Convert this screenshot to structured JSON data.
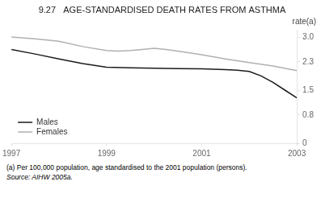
{
  "chart_data": {
    "type": "line",
    "title": "9.27   AGE-STANDARDISED DEATH RATES FROM ASTHMA",
    "ylabel": "rate(a)",
    "series": [
      {
        "name": "Males",
        "color": "#1a1a1a",
        "x": [
          1997,
          1997.5,
          1998,
          1998.5,
          1999,
          1999.5,
          2000,
          2000.5,
          2001,
          2001.25,
          2001.5,
          2001.75,
          2002,
          2002.25,
          2002.5,
          2002.75,
          2003
        ],
        "values": [
          2.65,
          2.52,
          2.38,
          2.25,
          2.15,
          2.13,
          2.12,
          2.11,
          2.1,
          2.09,
          2.08,
          2.06,
          2.03,
          1.9,
          1.72,
          1.5,
          1.28
        ]
      },
      {
        "name": "Females",
        "color": "#b0b0b0",
        "x": [
          1997,
          1997.5,
          1998,
          1998.5,
          1999,
          1999.25,
          1999.5,
          1999.75,
          2000,
          2000.25,
          2000.5,
          2001,
          2001.5,
          2002,
          2002.5,
          2003
        ],
        "values": [
          3.0,
          2.95,
          2.88,
          2.73,
          2.62,
          2.6,
          2.62,
          2.65,
          2.68,
          2.65,
          2.6,
          2.5,
          2.38,
          2.28,
          2.18,
          2.05
        ]
      }
    ],
    "xlim": [
      1997,
      2003
    ],
    "xticks": [
      1997,
      1999,
      2001,
      2003
    ],
    "ylim": [
      0,
      3.2
    ],
    "yticks": [
      0,
      0.8,
      1.5,
      2.3,
      {
        "value": 3.0,
        "label": "3.0"
      }
    ],
    "grid": false,
    "legend": "lower left",
    "footnotes": [
      "(a) Per 100,000 population, age standardised to the 2001 population (persons).",
      "Source:  AIHW 2005a."
    ]
  }
}
